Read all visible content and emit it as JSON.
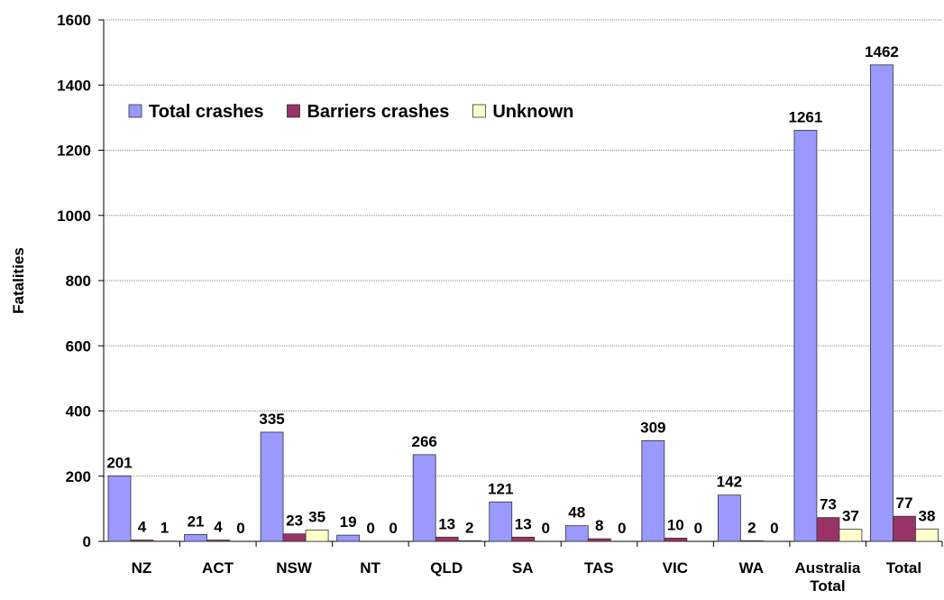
{
  "chart_data": {
    "type": "bar",
    "y_label": "Fatalities",
    "categories": [
      "NZ",
      "ACT",
      "NSW",
      "NT",
      "QLD",
      "SA",
      "TAS",
      "VIC",
      "WA",
      "Australia Total",
      "Total"
    ],
    "series": [
      {
        "name": "Total crashes",
        "color": "#9999ff",
        "values": [
          201,
          21,
          335,
          19,
          266,
          121,
          48,
          309,
          142,
          1261,
          1462
        ]
      },
      {
        "name": "Barriers crashes",
        "color": "#993366",
        "values": [
          4,
          4,
          23,
          0,
          13,
          13,
          8,
          10,
          2,
          73,
          77
        ]
      },
      {
        "name": "Unknown",
        "color": "#ffffcc",
        "values": [
          1,
          0,
          35,
          0,
          2,
          0,
          0,
          0,
          0,
          37,
          38
        ]
      }
    ],
    "ylim": [
      0,
      1600
    ],
    "yticks": [
      0,
      200,
      400,
      600,
      800,
      1000,
      1200,
      1400,
      1600
    ],
    "grid": true,
    "legend": "upper left"
  }
}
